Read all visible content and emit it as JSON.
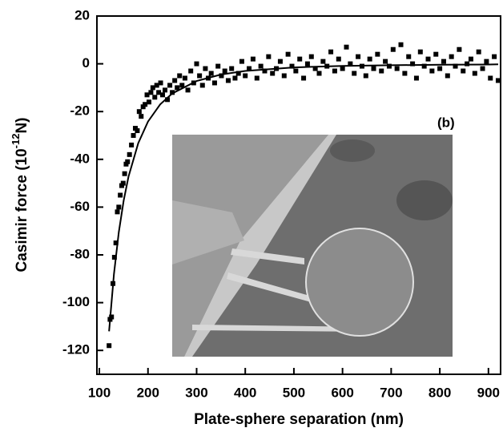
{
  "chart_data": {
    "type": "scatter",
    "x_label": "Plate-sphere separation (nm)",
    "y_label": "Casimir force (10",
    "y_label_exponent": "-12",
    "y_label_unit": "N)",
    "annotation": "(b)",
    "xlim": [
      95,
      925
    ],
    "ylim": [
      -130,
      20
    ],
    "xticks": [
      100,
      200,
      300,
      400,
      500,
      600,
      700,
      800,
      900
    ],
    "yticks": [
      -120,
      -100,
      -80,
      -60,
      -40,
      -20,
      0,
      20
    ],
    "marker_color": "#000000",
    "fit": {
      "color": "#000000",
      "x": [
        120,
        130,
        140,
        150,
        160,
        180,
        200,
        225,
        250,
        300,
        350,
        400,
        500,
        600,
        700,
        800,
        900,
        920
      ],
      "values": [
        -112,
        -88.1,
        -70.5,
        -57.3,
        -47.2,
        -33.2,
        -24.2,
        -17,
        -12.4,
        -7.2,
        -4.5,
        -3,
        -1.5,
        -0.9,
        -0.6,
        -0.4,
        -0.3,
        -0.2
      ]
    },
    "x": [
      120,
      122,
      125,
      128,
      131,
      134,
      137,
      140,
      143,
      146,
      149,
      152,
      155,
      158,
      162,
      166,
      170,
      174,
      178,
      182,
      186,
      190,
      194,
      198,
      202,
      206,
      210,
      214,
      218,
      222,
      226,
      230,
      235,
      240,
      245,
      250,
      255,
      260,
      265,
      270,
      276,
      282,
      288,
      294,
      300,
      306,
      312,
      318,
      324,
      330,
      337,
      344,
      351,
      358,
      365,
      372,
      379,
      386,
      393,
      400,
      408,
      416,
      424,
      432,
      440,
      448,
      456,
      464,
      472,
      480,
      488,
      496,
      504,
      512,
      520,
      528,
      536,
      544,
      552,
      560,
      568,
      576,
      584,
      592,
      600,
      608,
      616,
      624,
      632,
      640,
      648,
      656,
      664,
      672,
      680,
      688,
      696,
      704,
      712,
      720,
      728,
      736,
      744,
      752,
      760,
      768,
      776,
      784,
      792,
      800,
      808,
      816,
      824,
      832,
      840,
      848,
      856,
      864,
      872,
      880,
      888,
      896,
      904,
      912,
      920
    ],
    "values": [
      -118,
      -107,
      -106,
      -92,
      -81,
      -75,
      -62,
      -60,
      -55,
      -51,
      -50,
      -46,
      -42,
      -41,
      -38,
      -34,
      -30,
      -27,
      -28,
      -20,
      -22,
      -18,
      -17,
      -13,
      -16,
      -12,
      -10,
      -14,
      -9,
      -12,
      -8,
      -13,
      -11,
      -15,
      -9,
      -12,
      -7,
      -10,
      -5,
      -9,
      -6,
      -11,
      -3,
      -8,
      0,
      -5,
      -9,
      -2,
      -6,
      -4,
      -8,
      -1,
      -5,
      -3,
      -7,
      -2,
      -6,
      -4,
      1,
      -5,
      -2,
      2,
      -6,
      -1,
      -3,
      3,
      -4,
      -2,
      1,
      -5,
      4,
      -1,
      -3,
      2,
      -6,
      0,
      3,
      -2,
      -4,
      1,
      -1,
      5,
      -3,
      2,
      -2,
      7,
      0,
      -4,
      3,
      -1,
      -5,
      2,
      -2,
      4,
      -3,
      1,
      -1,
      6,
      -2,
      8,
      -4,
      3,
      0,
      -6,
      5,
      -1,
      2,
      -3,
      4,
      -2,
      1,
      -5,
      3,
      -1,
      6,
      -3,
      0,
      2,
      -4,
      5,
      -2,
      1,
      -6,
      3,
      -7
    ]
  }
}
